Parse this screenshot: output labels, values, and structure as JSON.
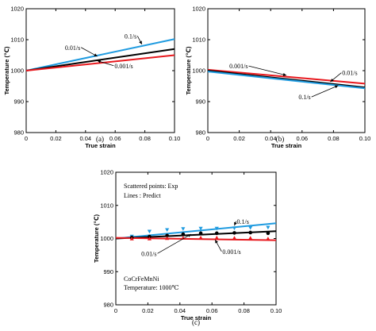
{
  "chart_data": [
    {
      "type": "line",
      "panel_label": "(a)",
      "xlabel": "True strain",
      "ylabel": "Temperature (℃)",
      "xlim": [
        0,
        0.1
      ],
      "ylim": [
        980,
        1020
      ],
      "xticks": [
        "0",
        "0.02",
        "0.04",
        "0.06",
        "0.08",
        "0.10"
      ],
      "yticks": [
        "980",
        "990",
        "1000",
        "1010",
        "1020"
      ],
      "series": [
        {
          "name": "0.1/s",
          "color": "#1f9be0",
          "x": [
            0,
            0.1
          ],
          "y": [
            1000,
            1010.2
          ]
        },
        {
          "name": "0.01/s",
          "color": "#000000",
          "x": [
            0,
            0.1
          ],
          "y": [
            1000,
            1007.0
          ]
        },
        {
          "name": "0.001/s",
          "color": "#e8191e",
          "x": [
            0,
            0.1
          ],
          "y": [
            1000,
            1005.0
          ]
        }
      ],
      "annotations": [
        {
          "text": "0.1/s",
          "x": 0.075,
          "y": 1011.2,
          "tx": 0.078,
          "ty": 1008.5
        },
        {
          "text": "0.01/s",
          "x": 0.037,
          "y": 1007.5,
          "tx": 0.048,
          "ty": 1004.6
        },
        {
          "text": "0.001/s",
          "x": 0.059,
          "y": 1001.6,
          "tx": 0.048,
          "ty": 1003.2
        }
      ]
    },
    {
      "type": "line",
      "panel_label": "(b)",
      "xlabel": "True strain",
      "ylabel": "Temperature (℃)",
      "xlim": [
        0,
        0.1
      ],
      "ylim": [
        980,
        1020
      ],
      "xticks": [
        "0",
        "0.02",
        "0.04",
        "0.06",
        "0.08",
        "0.10"
      ],
      "yticks": [
        "980",
        "990",
        "1000",
        "1010",
        "1020"
      ],
      "series": [
        {
          "name": "0.001/s",
          "color": "#e8191e",
          "x": [
            0,
            0.1
          ],
          "y": [
            1000.3,
            995.8
          ]
        },
        {
          "name": "0.01/s",
          "color": "#000000",
          "x": [
            0,
            0.1
          ],
          "y": [
            1000.0,
            994.6
          ]
        },
        {
          "name": "0.1/s",
          "color": "#1f9be0",
          "x": [
            0,
            0.1
          ],
          "y": [
            999.7,
            994.3
          ]
        }
      ],
      "annotations": [
        {
          "text": "0.001/s",
          "x": 0.026,
          "y": 1001.5,
          "tx": 0.05,
          "ty": 998.5
        },
        {
          "text": "0.01/s",
          "x": 0.085,
          "y": 999.3,
          "tx": 0.078,
          "ty": 996.4
        },
        {
          "text": "0.1/s",
          "x": 0.066,
          "y": 991.5,
          "tx": 0.083,
          "ty": 995.2
        }
      ]
    },
    {
      "type": "line",
      "panel_label": "(c)",
      "xlabel": "True strain",
      "ylabel": "Temperature (℃)",
      "xlim": [
        0,
        0.1
      ],
      "ylim": [
        980,
        1020
      ],
      "xticks": [
        "0",
        "0.02",
        "0.04",
        "0.06",
        "0.08",
        "0.10"
      ],
      "yticks": [
        "980",
        "990",
        "1000",
        "1010",
        "1020"
      ],
      "texts": [
        "Scattered points: Exp",
        "Lines : Predict",
        "CoCrFeMnNi",
        "Temperature: 1000℃"
      ],
      "series": [
        {
          "name": "0.1/s",
          "color": "#1f9be0",
          "x": [
            0,
            0.1
          ],
          "y": [
            1000,
            1004.6
          ]
        },
        {
          "name": "0.01/s",
          "color": "#000000",
          "x": [
            0,
            0.1
          ],
          "y": [
            1000,
            1002.2
          ]
        },
        {
          "name": "0.001/s",
          "color": "#e8191e",
          "x": [
            0,
            0.1
          ],
          "y": [
            1000.2,
            999.5
          ]
        }
      ],
      "scatter": [
        {
          "name": "0.1/s",
          "color": "#1f9be0",
          "marker": "triangle-down",
          "x": [
            0.01,
            0.021,
            0.032,
            0.042,
            0.053,
            0.063,
            0.074,
            0.084,
            0.095
          ],
          "y": [
            1000.6,
            1002.1,
            1002.6,
            1002.9,
            1003.0,
            1003.0,
            1003.1,
            1003.2,
            1003.3
          ]
        },
        {
          "name": "0.01/s",
          "color": "#000000",
          "marker": "circle",
          "x": [
            0.01,
            0.021,
            0.032,
            0.042,
            0.053,
            0.063,
            0.074,
            0.084,
            0.095
          ],
          "y": [
            1000.3,
            1000.6,
            1000.9,
            1001.3,
            1001.6,
            1001.6,
            1001.7,
            1001.8,
            1001.6
          ]
        },
        {
          "name": "0.001/s",
          "color": "#e8191e",
          "marker": "triangle-up",
          "x": [
            0.01,
            0.021,
            0.032,
            0.042,
            0.053,
            0.063,
            0.074,
            0.084,
            0.095
          ],
          "y": [
            1000.0,
            1000.0,
            1000.1,
            1000.2,
            1000.3,
            1000.3,
            1000.2,
            1000.2,
            1000.0
          ]
        }
      ],
      "annotations": [
        {
          "text": "0.1/s",
          "x": 0.075,
          "y": 1005.2,
          "tx": 0.074,
          "ty": 1003.9
        },
        {
          "text": "0.01/s",
          "x": 0.026,
          "y": 995.5,
          "tx": 0.047,
          "ty": 1001.3
        },
        {
          "text": "0.001/s",
          "x": 0.066,
          "y": 996.1,
          "tx": 0.062,
          "ty": 999.6
        }
      ]
    }
  ]
}
